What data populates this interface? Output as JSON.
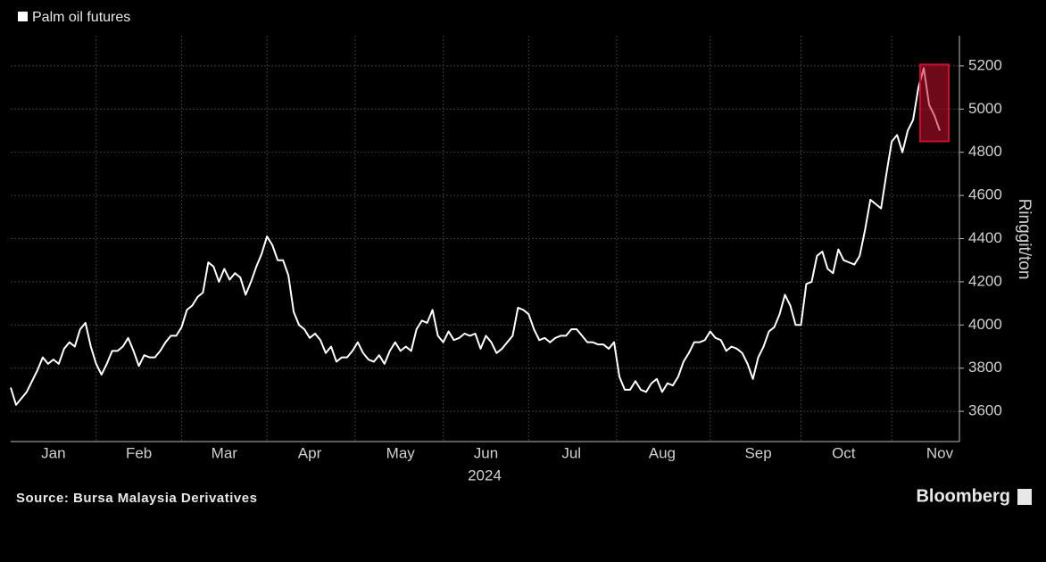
{
  "chart_data": {
    "type": "line",
    "legend_label": "Palm oil futures",
    "ylabel": "Ringgit/ton",
    "xlabel": "2024",
    "source": "Source: Bursa Malaysia Derivatives",
    "brand": "Bloomberg",
    "color": "#ffffff",
    "highlight_color": "#c8102e",
    "grid": true,
    "ylim": [
      3460,
      5340
    ],
    "yticks": [
      3600,
      3800,
      4000,
      4200,
      4400,
      4600,
      4800,
      5000,
      5200
    ],
    "categories": [
      null,
      null,
      null,
      null,
      null,
      null,
      null,
      null,
      "Jan",
      null,
      null,
      null,
      null,
      null,
      null,
      null,
      null,
      null,
      null,
      null,
      null,
      null,
      null,
      null,
      "Feb",
      null,
      null,
      null,
      null,
      null,
      null,
      null,
      null,
      null,
      null,
      null,
      null,
      null,
      null,
      null,
      "Mar",
      null,
      null,
      null,
      null,
      null,
      null,
      null,
      null,
      null,
      null,
      null,
      null,
      null,
      null,
      null,
      "Apr",
      null,
      null,
      null,
      null,
      null,
      null,
      null,
      null,
      null,
      null,
      null,
      null,
      null,
      null,
      null,
      null,
      "May",
      null,
      null,
      null,
      null,
      null,
      null,
      null,
      null,
      null,
      null,
      null,
      null,
      null,
      null,
      null,
      "Jun",
      null,
      null,
      null,
      null,
      null,
      null,
      null,
      null,
      null,
      null,
      null,
      null,
      null,
      null,
      null,
      "Jul",
      null,
      null,
      null,
      null,
      null,
      null,
      null,
      null,
      null,
      null,
      null,
      null,
      null,
      null,
      null,
      null,
      "Aug",
      null,
      null,
      null,
      null,
      null,
      null,
      null,
      null,
      null,
      null,
      null,
      null,
      null,
      null,
      null,
      null,
      null,
      "Sep",
      null,
      null,
      null,
      null,
      null,
      null,
      null,
      null,
      null,
      null,
      null,
      null,
      null,
      null,
      null,
      "Oct",
      null,
      null,
      null,
      null,
      null,
      null,
      null,
      null,
      null,
      null,
      null,
      null,
      null,
      null,
      null,
      null,
      null,
      "Nov"
    ],
    "values": [
      3710,
      3630,
      3660,
      3690,
      3740,
      3790,
      3850,
      3820,
      3840,
      3820,
      3890,
      3920,
      3900,
      3980,
      4010,
      3900,
      3820,
      3770,
      3820,
      3880,
      3880,
      3900,
      3940,
      3880,
      3810,
      3860,
      3850,
      3850,
      3880,
      3920,
      3950,
      3950,
      3990,
      4070,
      4090,
      4130,
      4150,
      4290,
      4270,
      4200,
      4260,
      4210,
      4240,
      4220,
      4140,
      4200,
      4270,
      4330,
      4410,
      4370,
      4300,
      4300,
      4230,
      4060,
      4000,
      3980,
      3940,
      3960,
      3930,
      3870,
      3900,
      3830,
      3850,
      3850,
      3880,
      3920,
      3870,
      3840,
      3830,
      3860,
      3820,
      3880,
      3920,
      3880,
      3900,
      3880,
      3980,
      4020,
      4010,
      4070,
      3950,
      3920,
      3970,
      3930,
      3940,
      3960,
      3950,
      3960,
      3890,
      3950,
      3920,
      3870,
      3890,
      3920,
      3950,
      4080,
      4070,
      4050,
      3980,
      3930,
      3940,
      3920,
      3940,
      3950,
      3950,
      3980,
      3980,
      3950,
      3920,
      3920,
      3910,
      3910,
      3890,
      3920,
      3760,
      3700,
      3700,
      3740,
      3700,
      3690,
      3730,
      3750,
      3690,
      3730,
      3720,
      3760,
      3830,
      3870,
      3920,
      3920,
      3930,
      3970,
      3940,
      3930,
      3880,
      3900,
      3890,
      3870,
      3820,
      3750,
      3850,
      3900,
      3970,
      3990,
      4050,
      4140,
      4090,
      4000,
      4000,
      4190,
      4200,
      4320,
      4340,
      4260,
      4240,
      4350,
      4300,
      4290,
      4280,
      4320,
      4440,
      4580,
      4560,
      4540,
      4700,
      4850,
      4880,
      4800,
      4900,
      4950,
      5100,
      5190,
      5020,
      4970,
      4900
    ]
  }
}
